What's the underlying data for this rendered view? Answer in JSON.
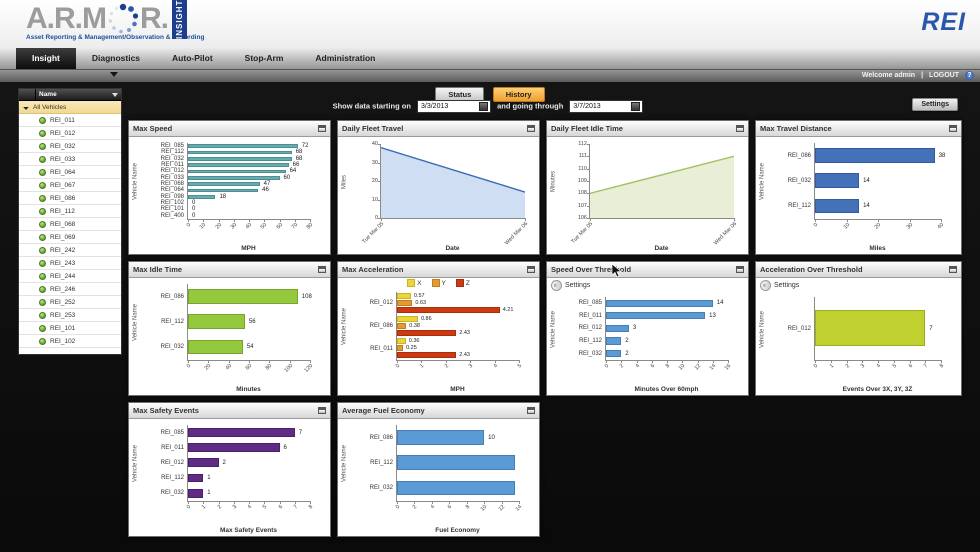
{
  "branding": {
    "logo_text_left": "A.R.M",
    "logo_text_right": "R.",
    "logo_badge": "INSIGHT",
    "logo_tagline": "Asset Reporting & Management/Observation & Recording",
    "corner_logo": "REI",
    "accent_blue": "#1c3e8c"
  },
  "nav": {
    "tabs": [
      {
        "label": "Insight",
        "active": true
      },
      {
        "label": "Diagnostics",
        "active": false
      },
      {
        "label": "Auto-Pilot",
        "active": false
      },
      {
        "label": "Stop-Arm",
        "active": false
      },
      {
        "label": "Administration",
        "active": false
      }
    ],
    "welcome": "Welcome admin",
    "separator": "|",
    "logout": "LOGOUT",
    "help_icon_glyph": "?"
  },
  "controls": {
    "status_label": "Status",
    "history_label": "History",
    "date_prefix": "Show data starting on",
    "date_middle": "and going through",
    "start_date": "3/3/2013",
    "end_date": "3/7/2013",
    "settings_label": "Settings"
  },
  "sidebar": {
    "header": "Name",
    "root_item": "All Vehicles",
    "vehicles": [
      "REI_011",
      "REI_012",
      "REI_032",
      "REI_033",
      "REI_064",
      "REI_067",
      "REI_086",
      "REI_112",
      "REI_068",
      "REI_069",
      "REI_242",
      "REI_243",
      "REI_244",
      "REI_246",
      "REI_252",
      "REI_253",
      "REI_101",
      "REI_102"
    ]
  },
  "icons": {
    "help_icon": "question-circle",
    "filter_icon": "funnel",
    "vehicle_status_icon": "green-dot",
    "root_expand_icon": "triangle",
    "panel_popout_icon": "window-popout",
    "settings_expander_icon": "double-chevron",
    "calendar_icon": "dark-square",
    "cursor_icon": "arrow-pointer"
  },
  "panels": [
    {
      "title": "Max Speed",
      "chart_data": {
        "type": "bar",
        "orientation": "horizontal",
        "bar_color": "#64aeb2",
        "bar_border": "#4d8e92",
        "categories": [
          "REI_085",
          "REI_112",
          "REI_032",
          "REI_011",
          "REI_012",
          "REI_033",
          "REI_068",
          "REI_064",
          "REI_098",
          "REI_102",
          "REI_101",
          "REI_400"
        ],
        "values": [
          72,
          68,
          68,
          66,
          64,
          60,
          47,
          46,
          18,
          0,
          0,
          0
        ],
        "labels": [
          "72",
          "68",
          "68",
          "66",
          "64",
          "60",
          "47",
          "46",
          "18",
          "0",
          "0",
          "0"
        ],
        "xlabel": "MPH",
        "ylabel": "Vehicle Name",
        "xlim": [
          0,
          80
        ],
        "xticks": [
          0,
          10,
          20,
          30,
          40,
          50,
          60,
          70,
          80
        ]
      }
    },
    {
      "title": "Daily Fleet Travel",
      "chart_data": {
        "type": "area",
        "line_color": "#3c6cb5",
        "fill_color": "#cfdef2",
        "x": [
          "Tue Mar 05",
          "Wed Mar 06"
        ],
        "values": [
          38,
          14
        ],
        "xlabel": "Date",
        "ylabel": "Miles",
        "ylim": [
          0,
          40
        ],
        "yticks": [
          0,
          10,
          20,
          30,
          40
        ]
      }
    },
    {
      "title": "Daily Fleet Idle Time",
      "chart_data": {
        "type": "area",
        "line_color": "#a3c162",
        "fill_color": "#e9eed6",
        "x": [
          "Tue Mar 05",
          "Wed Mar 06"
        ],
        "values": [
          108,
          111
        ],
        "xlabel": "Date",
        "ylabel": "Minutes",
        "ylim": [
          106,
          112
        ],
        "yticks": [
          106,
          107,
          108,
          109,
          110,
          111,
          112
        ]
      }
    },
    {
      "title": "Max Travel Distance",
      "chart_data": {
        "type": "bar",
        "orientation": "horizontal",
        "bar_color": "#4472b8",
        "bar_border": "#35599a",
        "categories": [
          "REI_086",
          "REI_032",
          "REI_112"
        ],
        "values": [
          38,
          14,
          14
        ],
        "labels": [
          "38",
          "14",
          "14"
        ],
        "xlabel": "Miles",
        "ylabel": "Vehicle Name",
        "xlim": [
          0,
          40
        ],
        "xticks": [
          0,
          10,
          20,
          30,
          40
        ]
      }
    },
    {
      "title": "Max Idle Time",
      "chart_data": {
        "type": "bar",
        "orientation": "horizontal",
        "bar_color": "#94c83d",
        "bar_border": "#76a52c",
        "categories": [
          "REI_086",
          "REI_112",
          "REI_032"
        ],
        "values": [
          108,
          56,
          54
        ],
        "labels": [
          "108",
          "56",
          "54"
        ],
        "xlabel": "Minutes",
        "ylabel": "Vehicle Name",
        "xlim": [
          0,
          120
        ],
        "xticks": [
          0,
          20,
          40,
          60,
          80,
          100,
          120
        ]
      }
    },
    {
      "title": "Max Acceleration",
      "chart_data": {
        "type": "bar",
        "orientation": "horizontal",
        "grouped": true,
        "categories": [
          "REI_012",
          "REI_086",
          "REI_011"
        ],
        "series": [
          {
            "name": "X",
            "color": "#ecd637",
            "border": "#c9b425",
            "values": [
              0.57,
              0.86,
              0.36
            ],
            "labels": [
              "0.57",
              "0.86",
              "0.36"
            ]
          },
          {
            "name": "Y",
            "color": "#e59a2f",
            "border": "#c37d1c",
            "values": [
              0.63,
              0.38,
              0.25
            ],
            "labels": [
              "0.63",
              "0.38",
              "0.25"
            ]
          },
          {
            "name": "Z",
            "color": "#cd3a12",
            "border": "#a82d0c",
            "values": [
              4.21,
              2.43,
              2.43
            ],
            "labels": [
              "4.21",
              "2.43",
              "2.43"
            ]
          }
        ],
        "legend": [
          "X",
          "Y",
          "Z"
        ],
        "legend_position": "top",
        "xlabel": "MPH",
        "ylabel": "Vehicle Name",
        "xlim": [
          0,
          5
        ],
        "xticks": [
          0,
          1,
          2,
          3,
          4,
          5
        ]
      }
    },
    {
      "title": "Speed Over Threshold",
      "settings_label": "Settings",
      "chart_data": {
        "type": "bar",
        "orientation": "horizontal",
        "bar_color": "#5b9bd5",
        "bar_border": "#477fb2",
        "categories": [
          "REI_085",
          "REI_011",
          "REI_012",
          "REI_112",
          "REI_032"
        ],
        "values": [
          14,
          13,
          3,
          2,
          2
        ],
        "labels": [
          "14",
          "13",
          "3",
          "2",
          "2"
        ],
        "xlabel": "Minutes Over 60mph",
        "ylabel": "Vehicle Name",
        "xlim": [
          0,
          16
        ],
        "xticks": [
          0,
          2,
          4,
          6,
          8,
          10,
          12,
          14,
          16
        ]
      }
    },
    {
      "title": "Acceleration Over Threshold",
      "settings_label": "Settings",
      "chart_data": {
        "type": "bar",
        "orientation": "horizontal",
        "bar_color": "#bfd02f",
        "bar_border": "#9cab22",
        "categories": [
          "REI_012"
        ],
        "values": [
          7
        ],
        "labels": [
          "7"
        ],
        "xlabel": "Events Over 3X, 3Y, 3Z",
        "ylabel": "Vehicle Name",
        "xlim": [
          0,
          8
        ],
        "xticks": [
          0,
          1,
          2,
          3,
          4,
          5,
          6,
          7,
          8
        ]
      }
    },
    {
      "title": "Max Safety Events",
      "chart_data": {
        "type": "bar",
        "orientation": "horizontal",
        "bar_color": "#5f2b85",
        "bar_border": "#4a2168",
        "categories": [
          "REI_085",
          "REI_011",
          "REI_012",
          "REI_112",
          "REI_032"
        ],
        "values": [
          7,
          6,
          2,
          1,
          1
        ],
        "labels": [
          "7",
          "6",
          "2",
          "1",
          "1"
        ],
        "xlabel": "Max Safety Events",
        "ylabel": "Vehicle Name",
        "xlim": [
          0,
          8
        ],
        "xticks": [
          0,
          1,
          2,
          3,
          4,
          5,
          6,
          7,
          8
        ]
      }
    },
    {
      "title": "Average Fuel Economy",
      "chart_data": {
        "type": "bar",
        "orientation": "horizontal",
        "bar_color": "#5b9bd5",
        "bar_border": "#477fb2",
        "categories": [
          "REI_086",
          "REI_112",
          "REI_032"
        ],
        "values": [
          10,
          13.5,
          13.5
        ],
        "labels": [
          "10",
          "",
          ""
        ],
        "xlabel": "Fuel Economy",
        "ylabel": "Vehicle Name",
        "xlim": [
          0,
          14
        ],
        "xticks": [
          0,
          2,
          4,
          6,
          8,
          10,
          12,
          14
        ]
      }
    }
  ]
}
